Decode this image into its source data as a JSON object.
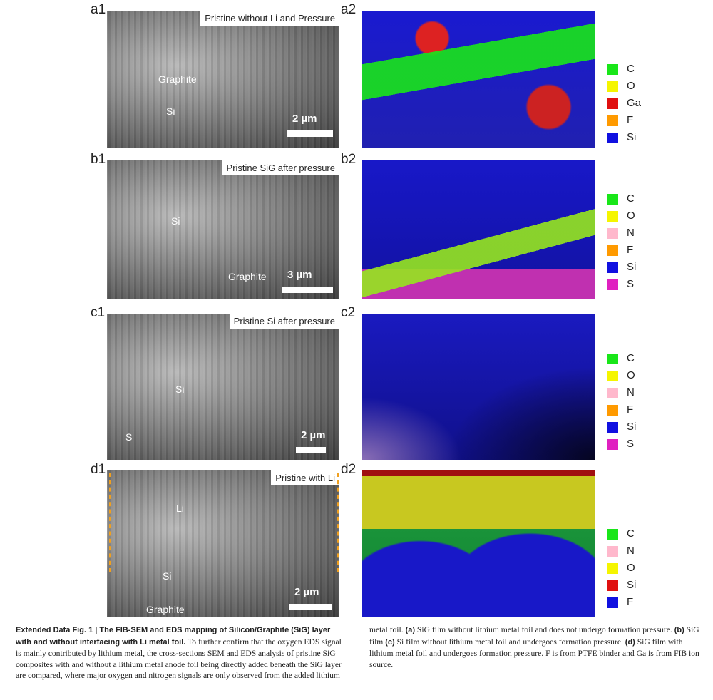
{
  "panels": [
    {
      "sem": {
        "label": "a1",
        "title": "Pristine without Li and Pressure",
        "annotations": [
          "Graphite",
          "Si"
        ],
        "scale_bar": "2 µm"
      },
      "eds": {
        "label": "a2",
        "legend": [
          {
            "name": "C",
            "color": "#19e619"
          },
          {
            "name": "O",
            "color": "#f5f500"
          },
          {
            "name": "Ga",
            "color": "#e01010"
          },
          {
            "name": "F",
            "color": "#ff9a00"
          },
          {
            "name": "Si",
            "color": "#1010e0"
          }
        ]
      }
    },
    {
      "sem": {
        "label": "b1",
        "title": "Pristine SiG after pressure",
        "annotations": [
          "Si",
          "Graphite"
        ],
        "scale_bar": "3 µm"
      },
      "eds": {
        "label": "b2",
        "legend": [
          {
            "name": "C",
            "color": "#19e619"
          },
          {
            "name": "O",
            "color": "#f5f500"
          },
          {
            "name": "N",
            "color": "#ffb8cc"
          },
          {
            "name": "F",
            "color": "#ff9a00"
          },
          {
            "name": "Si",
            "color": "#1010e0"
          },
          {
            "name": "S",
            "color": "#e020c0"
          }
        ]
      }
    },
    {
      "sem": {
        "label": "c1",
        "title": "Pristine  Si after pressure",
        "annotations": [
          "Si",
          "S"
        ],
        "scale_bar": "2 µm"
      },
      "eds": {
        "label": "c2",
        "legend": [
          {
            "name": "C",
            "color": "#19e619"
          },
          {
            "name": "O",
            "color": "#f5f500"
          },
          {
            "name": "N",
            "color": "#ffb8cc"
          },
          {
            "name": "F",
            "color": "#ff9a00"
          },
          {
            "name": "Si",
            "color": "#1010e0"
          },
          {
            "name": "S",
            "color": "#e020c0"
          }
        ]
      }
    },
    {
      "sem": {
        "label": "d1",
        "title": "Pristine with Li",
        "annotations": [
          "Li",
          "Si",
          "Graphite"
        ],
        "scale_bar": "2 µm"
      },
      "eds": {
        "label": "d2",
        "legend": [
          {
            "name": "C",
            "color": "#19e619"
          },
          {
            "name": "N",
            "color": "#ffb8cc"
          },
          {
            "name": "O",
            "color": "#f5f500"
          },
          {
            "name": "Si",
            "color": "#e01010"
          },
          {
            "name": "F",
            "color": "#1010e0"
          }
        ]
      }
    }
  ],
  "caption": {
    "heading": "Extended Data Fig. 1 | The FIB-SEM and EDS mapping of Silicon/Graphite (SiG) layer with and without interfacing with Li metal foil.",
    "body": "To further confirm that the oxygen EDS signal is mainly contributed by lithium metal, the cross-sections SEM and EDS analysis of pristine SiG composites with and without a lithium metal anode foil being directly added beneath the SiG layer are compared, where major oxygen and nitrogen signals are only observed from the added lithium metal foil.",
    "items": [
      {
        "label": "(a)",
        "text": "SiG film without lithium metal foil and does not undergo formation pressure."
      },
      {
        "label": "(b)",
        "text": "SiG film"
      },
      {
        "label": "(c)",
        "text": "Si film without lithium metal foil and undergoes formation pressure."
      },
      {
        "label": "(d)",
        "text": "SiG film with lithium metal foil and undergoes formation pressure."
      }
    ],
    "note": "F is from PTFE binder and Ga is from FIB ion source."
  }
}
